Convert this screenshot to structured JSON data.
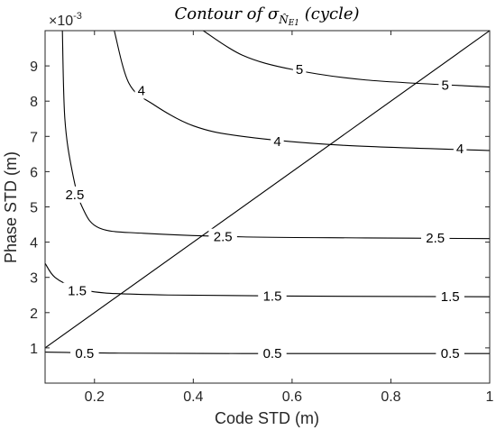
{
  "chart_data": {
    "type": "contour",
    "title": {
      "prefix": "Contour of ",
      "symbol": "σ",
      "subscript": "N̂",
      "subscript_suffix": "E1",
      "suffix": " (cycle)"
    },
    "xlabel": "Code STD (m)",
    "ylabel": "Phase STD (m)",
    "y_exponent": "×10",
    "y_exponent_power": "-3",
    "xlim": [
      0.1,
      1.0
    ],
    "ylim": [
      0,
      10
    ],
    "x_ticks": [
      "0.2",
      "0.4",
      "0.6",
      "0.8",
      "1"
    ],
    "y_ticks": [
      "1",
      "2",
      "3",
      "4",
      "5",
      "6",
      "7",
      "8",
      "9"
    ],
    "grid": false,
    "contours": [
      {
        "level": "0.5",
        "points": [
          [
            0.1,
            0.88
          ],
          [
            0.25,
            0.85
          ],
          [
            0.5,
            0.84
          ],
          [
            0.75,
            0.84
          ],
          [
            1.0,
            0.84
          ]
        ],
        "labels": [
          [
            0.18,
            0.84
          ],
          [
            0.56,
            0.84
          ],
          [
            0.92,
            0.84
          ]
        ]
      },
      {
        "level": "1.5",
        "points": [
          [
            0.1,
            3.4
          ],
          [
            0.12,
            3.0
          ],
          [
            0.16,
            2.72
          ],
          [
            0.22,
            2.56
          ],
          [
            0.35,
            2.5
          ],
          [
            0.6,
            2.47
          ],
          [
            1.0,
            2.45
          ]
        ],
        "labels": [
          [
            0.165,
            2.62
          ],
          [
            0.56,
            2.47
          ],
          [
            0.92,
            2.45
          ]
        ]
      },
      {
        "level": "2.5",
        "points": [
          [
            0.135,
            10
          ],
          [
            0.14,
            7.5
          ],
          [
            0.155,
            6.0
          ],
          [
            0.175,
            5.0
          ],
          [
            0.21,
            4.4
          ],
          [
            0.3,
            4.25
          ],
          [
            0.5,
            4.15
          ],
          [
            0.75,
            4.12
          ],
          [
            1.0,
            4.1
          ]
        ],
        "labels": [
          [
            0.16,
            5.35
          ],
          [
            0.46,
            4.15
          ],
          [
            0.89,
            4.12
          ]
        ]
      },
      {
        "level": "4",
        "points": [
          [
            0.24,
            10
          ],
          [
            0.27,
            8.5
          ],
          [
            0.32,
            7.9
          ],
          [
            0.4,
            7.3
          ],
          [
            0.5,
            7.0
          ],
          [
            0.7,
            6.75
          ],
          [
            1.0,
            6.6
          ]
        ],
        "labels": [
          [
            0.295,
            8.3
          ],
          [
            0.57,
            6.85
          ],
          [
            0.94,
            6.65
          ]
        ]
      },
      {
        "level": "5",
        "points": [
          [
            0.42,
            10
          ],
          [
            0.5,
            9.3
          ],
          [
            0.6,
            8.9
          ],
          [
            0.75,
            8.6
          ],
          [
            1.0,
            8.4
          ]
        ],
        "labels": [
          [
            0.615,
            8.9
          ],
          [
            0.91,
            8.45
          ]
        ]
      }
    ],
    "reference_line": {
      "x": [
        0.1,
        1.0
      ],
      "y": [
        1.0,
        10.0
      ]
    }
  }
}
